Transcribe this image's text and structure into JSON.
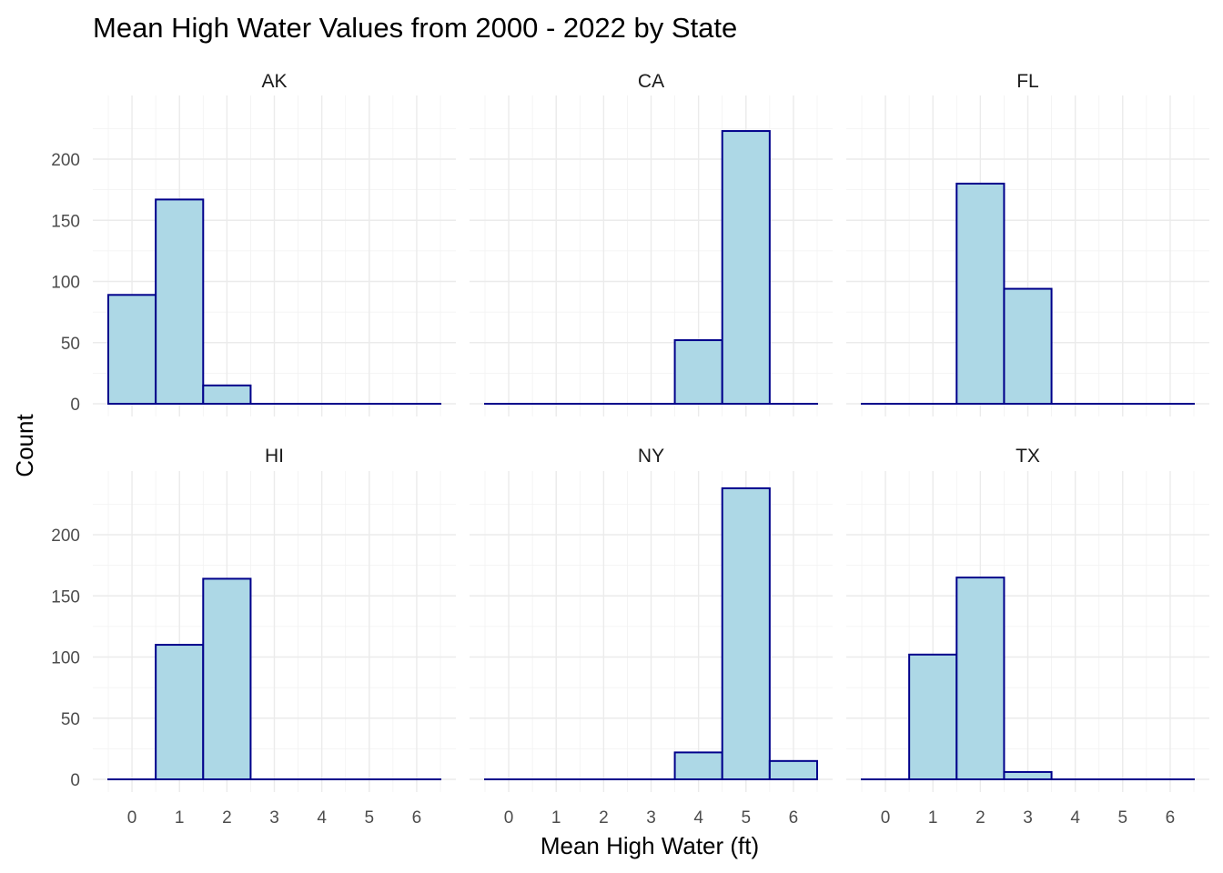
{
  "chart_data": {
    "type": "bar",
    "title": "Mean High Water Values from 2000 - 2022 by State",
    "xlabel": "Mean High Water (ft)",
    "ylabel": "Count",
    "bins": [
      0,
      1,
      2,
      3,
      4,
      5,
      6
    ],
    "xlim": [
      -0.5,
      6.5
    ],
    "ylim": [
      0,
      240
    ],
    "x_ticks": [
      0,
      1,
      2,
      3,
      4,
      5,
      6
    ],
    "y_ticks": [
      0,
      50,
      100,
      150,
      200
    ],
    "grid": true,
    "fill_color": "#ADD8E6",
    "outline_color": "#00008B",
    "panels": [
      {
        "label": "AK",
        "values": [
          89,
          167,
          15,
          0,
          0,
          0,
          0
        ]
      },
      {
        "label": "CA",
        "values": [
          0,
          0,
          0,
          0,
          52,
          223,
          0
        ]
      },
      {
        "label": "FL",
        "values": [
          0,
          0,
          180,
          94,
          0,
          0,
          0
        ]
      },
      {
        "label": "HI",
        "values": [
          0,
          110,
          164,
          0,
          0,
          0,
          0
        ]
      },
      {
        "label": "NY",
        "values": [
          0,
          0,
          0,
          0,
          22,
          238,
          15
        ]
      },
      {
        "label": "TX",
        "values": [
          0,
          102,
          165,
          6,
          0,
          0,
          0
        ]
      }
    ]
  }
}
